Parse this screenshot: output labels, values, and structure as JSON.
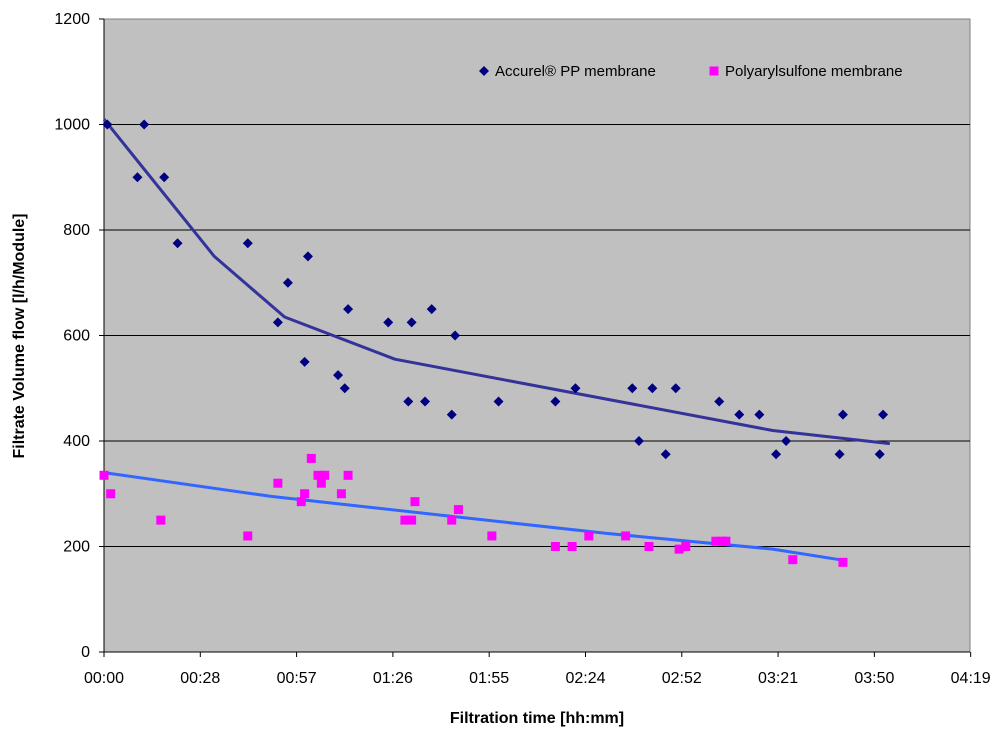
{
  "chart_data": {
    "type": "scatter",
    "title": "",
    "xlabel": "Filtration time [hh:mm]",
    "ylabel": "Filtrate Volume flow [l/h/Module]",
    "x_unit": "minutes",
    "xlim": [
      0,
      259
    ],
    "ylim": [
      0,
      1200
    ],
    "x_tick_values": [
      0,
      28.8,
      57.6,
      86.4,
      115.2,
      144,
      172.8,
      201.6,
      230.4,
      259.2
    ],
    "x_tick_labels": [
      "00:00",
      "00:28",
      "00:57",
      "01:26",
      "01:55",
      "02:24",
      "02:52",
      "03:21",
      "03:50",
      "04:19"
    ],
    "y_ticks": [
      0,
      200,
      400,
      600,
      800,
      1000,
      1200
    ],
    "grid": "horizontal",
    "legend_position": "top-right",
    "plot_background": "#c0c0c0",
    "series": [
      {
        "name": "Accurel® PP membrane",
        "color": "#000080",
        "marker": "diamond",
        "points": [
          [
            1,
            1000
          ],
          [
            10,
            900
          ],
          [
            12,
            1000
          ],
          [
            18,
            900
          ],
          [
            22,
            775
          ],
          [
            43,
            775
          ],
          [
            52,
            625
          ],
          [
            55,
            700
          ],
          [
            60,
            550
          ],
          [
            61,
            750
          ],
          [
            70,
            525
          ],
          [
            72,
            500
          ],
          [
            73,
            650
          ],
          [
            85,
            625
          ],
          [
            91,
            475
          ],
          [
            92,
            625
          ],
          [
            96,
            475
          ],
          [
            98,
            650
          ],
          [
            104,
            450
          ],
          [
            105,
            600
          ],
          [
            118,
            475
          ],
          [
            135,
            475
          ],
          [
            141,
            500
          ],
          [
            158,
            500
          ],
          [
            160,
            400
          ],
          [
            164,
            500
          ],
          [
            168,
            375
          ],
          [
            171,
            500
          ],
          [
            184,
            475
          ],
          [
            190,
            450
          ],
          [
            196,
            450
          ],
          [
            201,
            375
          ],
          [
            204,
            400
          ],
          [
            220,
            375
          ],
          [
            221,
            450
          ],
          [
            232,
            375
          ],
          [
            233,
            450
          ]
        ],
        "trend": [
          [
            0,
            1010
          ],
          [
            33,
            750
          ],
          [
            54,
            635
          ],
          [
            87,
            555
          ],
          [
            200,
            420
          ],
          [
            235,
            395
          ]
        ],
        "trend_color": "#333399"
      },
      {
        "name": "Polyarylsulfone membrane",
        "color": "#ff00ff",
        "marker": "square",
        "points": [
          [
            0,
            335
          ],
          [
            2,
            300
          ],
          [
            17,
            250
          ],
          [
            43,
            220
          ],
          [
            52,
            320
          ],
          [
            59,
            285
          ],
          [
            60,
            300
          ],
          [
            62,
            367
          ],
          [
            64,
            335
          ],
          [
            65,
            320
          ],
          [
            66,
            335
          ],
          [
            71,
            300
          ],
          [
            73,
            335
          ],
          [
            90,
            250
          ],
          [
            92,
            250
          ],
          [
            93,
            285
          ],
          [
            104,
            250
          ],
          [
            106,
            270
          ],
          [
            116,
            220
          ],
          [
            135,
            200
          ],
          [
            140,
            200
          ],
          [
            145,
            220
          ],
          [
            156,
            220
          ],
          [
            163,
            200
          ],
          [
            172,
            195
          ],
          [
            174,
            200
          ],
          [
            183,
            210
          ],
          [
            185,
            210
          ],
          [
            186,
            210
          ],
          [
            206,
            175
          ],
          [
            221,
            170
          ]
        ],
        "trend": [
          [
            0,
            340
          ],
          [
            50,
            295
          ],
          [
            100,
            260
          ],
          [
            150,
            225
          ],
          [
            200,
            195
          ],
          [
            220,
            175
          ]
        ],
        "trend_color": "#3366ff"
      }
    ]
  }
}
